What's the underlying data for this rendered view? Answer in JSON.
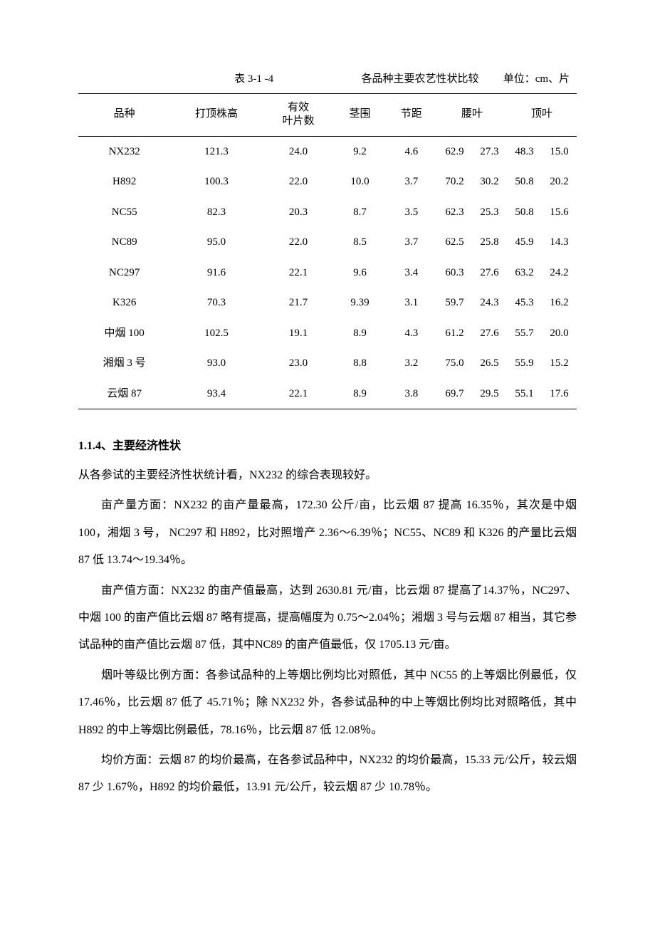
{
  "table": {
    "caption_num": "表 3-1 -4",
    "caption_title": "各品种主要农艺性状比较",
    "caption_unit": "单位：cm、片",
    "headers": {
      "c0": "品种",
      "c1": "打顶株高",
      "c2": "有效\n叶片数",
      "c3": "茎围",
      "c4": "节距",
      "c5": "腰叶",
      "c6": "顶叶"
    },
    "rows": [
      {
        "c0": "NX232",
        "c1": "121.3",
        "c2": "24.0",
        "c3": "9.2",
        "c4": "4.6",
        "c5a": "62.9",
        "c5b": "27.3",
        "c6a": "48.3",
        "c6b": "15.0"
      },
      {
        "c0": "H892",
        "c1": "100.3",
        "c2": "22.0",
        "c3": "10.0",
        "c4": "3.7",
        "c5a": "70.2",
        "c5b": "30.2",
        "c6a": "50.8",
        "c6b": "20.2"
      },
      {
        "c0": "NC55",
        "c1": "82.3",
        "c2": "20.3",
        "c3": "8.7",
        "c4": "3.5",
        "c5a": "62.3",
        "c5b": "25.3",
        "c6a": "50.8",
        "c6b": "15.6"
      },
      {
        "c0": "NC89",
        "c1": "95.0",
        "c2": "22.0",
        "c3": "8.5",
        "c4": "3.7",
        "c5a": "62.5",
        "c5b": "25.8",
        "c6a": "45.9",
        "c6b": "14.3"
      },
      {
        "c0": "NC297",
        "c1": "91.6",
        "c2": "22.1",
        "c3": "9.6",
        "c4": "3.4",
        "c5a": "60.3",
        "c5b": "27.6",
        "c6a": "63.2",
        "c6b": "24.2"
      },
      {
        "c0": "K326",
        "c1": "70.3",
        "c2": "21.7",
        "c3": "9.39",
        "c4": "3.1",
        "c5a": "59.7",
        "c5b": "24.3",
        "c6a": "45.3",
        "c6b": "16.2"
      },
      {
        "c0": "中烟 100",
        "c1": "102.5",
        "c2": "19.1",
        "c3": "8.9",
        "c4": "4.3",
        "c5a": "61.2",
        "c5b": "27.6",
        "c6a": "55.7",
        "c6b": "20.0"
      },
      {
        "c0": "湘烟 3 号",
        "c1": "93.0",
        "c2": "23.0",
        "c3": "8.8",
        "c4": "3.2",
        "c5a": "75.0",
        "c5b": "26.5",
        "c6a": "55.9",
        "c6b": "15.2"
      },
      {
        "c0": "云烟 87",
        "c1": "93.4",
        "c2": "22.1",
        "c3": "8.9",
        "c4": "3.8",
        "c5a": "69.7",
        "c5b": "29.5",
        "c6a": "55.1",
        "c6b": "17.6"
      }
    ]
  },
  "section": {
    "heading": "1.1.4、主要经济性状",
    "p0": "从各参试的主要经济性状统计看，NX232 的综合表现较好。",
    "p1": "亩产量方面：NX232 的亩产量最高，172.30 公斤/亩，比云烟 87 提高 16.35％，其次是中烟 100，湘烟 3 号， NC297 和 H892，比对照增产 2.36～6.39％；NC55、NC89 和 K326 的产量比云烟 87 低 13.74～19.34％。",
    "p2": "亩产值方面：NX232 的亩产值最高，达到 2630.81 元/亩，比云烟 87 提高了14.37％，NC297、中烟 100 的亩产值比云烟 87 略有提高，提高幅度为 0.75～2.04％；湘烟 3 号与云烟 87 相当，其它参试品种的亩产值比云烟 87 低，其中NC89 的亩产值最低，仅 1705.13 元/亩。",
    "p3": "烟叶等级比例方面：各参试品种的上等烟比例均比对照低，其中 NC55 的上等烟比例最低，仅 17.46％，比云烟 87 低了 45.71％；除 NX232 外，各参试品种的中上等烟比例均比对照略低，其中 H892 的中上等烟比例最低，78.16％，比云烟 87 低 12.08％。",
    "p4": "均价方面：云烟 87 的均价最高，在各参试品种中，NX232 的均价最高，15.33 元/公斤，较云烟 87 少 1.67％，H892 的均价最低，13.91 元/公斤，较云烟 87 少 10.78％。"
  }
}
